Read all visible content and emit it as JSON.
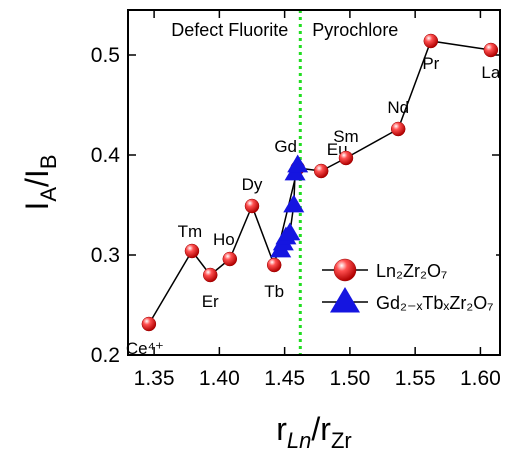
{
  "chart_data": {
    "type": "scatter",
    "xlim": [
      1.33,
      1.615
    ],
    "ylim": [
      0.2,
      0.545
    ],
    "xticks": [
      1.35,
      {
        "value": 1.4,
        "label": "1.40"
      },
      1.45,
      {
        "value": 1.5,
        "label": "1.50"
      },
      1.55,
      {
        "value": 1.6,
        "label": "1.60"
      }
    ],
    "yticks": [
      0.2,
      0.3,
      0.4,
      0.5
    ],
    "x_label": [
      "r",
      "Ln",
      "/r",
      "Zr"
    ],
    "y_label": [
      "I",
      "A",
      "/I",
      "B"
    ],
    "divider": {
      "x": 1.462,
      "color": "#22dd22",
      "left_label": "Defect Fluorite",
      "right_label": "Pyrochlore"
    },
    "series": [
      {
        "name": "Ln₂Zr₂O₇",
        "color": "#e01010",
        "marker": "sphere",
        "x": [
          1.346,
          1.379,
          1.393,
          1.408,
          1.425,
          1.442,
          1.46,
          1.478,
          1.497,
          1.537,
          1.562,
          1.608
        ],
        "values": [
          0.231,
          0.304,
          0.28,
          0.296,
          0.349,
          0.29,
          0.387,
          0.384,
          0.397,
          0.426,
          0.514,
          0.505
        ],
        "point_labels": [
          "Ce⁴⁺",
          "Tm",
          "Er",
          "Ho",
          "Dy",
          "Tb",
          "Gd",
          "Eu",
          "Sm",
          "Nd",
          "Pr",
          "La"
        ]
      },
      {
        "name": "Gd₂₋ₓTbₓZr₂O₇",
        "color": "#1515e0",
        "marker": "triangle",
        "x": [
          1.447,
          1.449,
          1.451,
          1.454,
          1.457,
          1.458,
          1.46
        ],
        "values": [
          0.305,
          0.312,
          0.318,
          0.322,
          0.35,
          0.382,
          0.39
        ]
      }
    ]
  }
}
